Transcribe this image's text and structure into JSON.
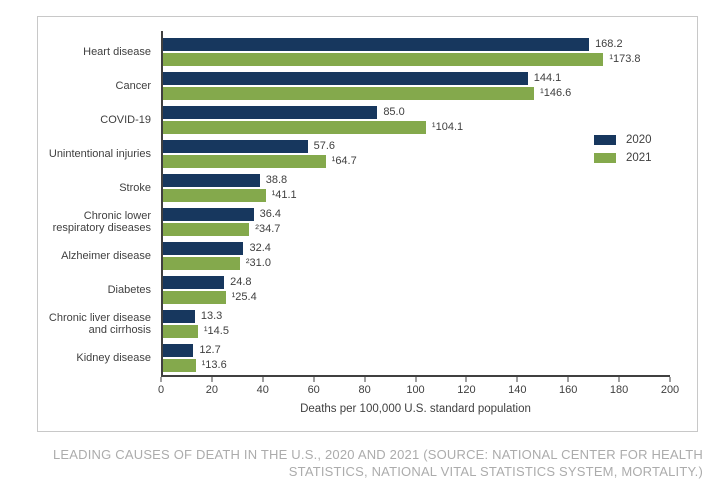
{
  "chart_data": {
    "type": "bar",
    "orientation": "horizontal",
    "categories": [
      "Heart disease",
      "Cancer",
      "COVID-19",
      "Unintentional injuries",
      "Stroke",
      "Chronic lower respiratory diseases",
      "Alzheimer disease",
      "Diabetes",
      "Chronic liver disease and cirrhosis",
      "Kidney disease"
    ],
    "series": [
      {
        "name": "2020",
        "color": "#17375E",
        "values": [
          168.2,
          144.1,
          85.0,
          57.6,
          38.8,
          36.4,
          32.4,
          24.8,
          13.3,
          12.7
        ],
        "labels": [
          "168.2",
          "144.1",
          "85.0",
          "57.6",
          "38.8",
          "36.4",
          "32.4",
          "24.8",
          "13.3",
          "12.7"
        ]
      },
      {
        "name": "2021",
        "color": "#84A94C",
        "values": [
          173.8,
          146.6,
          104.1,
          64.7,
          41.1,
          34.7,
          31.0,
          25.4,
          14.5,
          13.6
        ],
        "labels": [
          "¹173.8",
          "¹146.6",
          "¹104.1",
          "¹64.7",
          "¹41.1",
          "²34.7",
          "²31.0",
          "¹25.4",
          "¹14.5",
          "¹13.6"
        ]
      }
    ],
    "xlabel": "Deaths per 100,000 U.S. standard population",
    "xlim": [
      0,
      200
    ],
    "xticks": [
      0,
      20,
      40,
      60,
      80,
      100,
      120,
      140,
      160,
      180,
      200
    ],
    "legend": {
      "position": "right-middle",
      "entries": [
        "2020",
        "2021"
      ]
    }
  },
  "caption": "LEADING CAUSES OF DEATH IN THE U.S., 2020 AND 2021 (SOURCE: NATIONAL CENTER FOR HEALTH\nSTATISTICS, NATIONAL VITAL STATISTICS SYSTEM, MORTALITY.)",
  "colors": {
    "series_2020": "#17375E",
    "series_2021": "#84A94C",
    "axis": "#404040",
    "text": "#3F3F3F",
    "caption": "#ACACAC",
    "border": "#C8C8C8"
  }
}
